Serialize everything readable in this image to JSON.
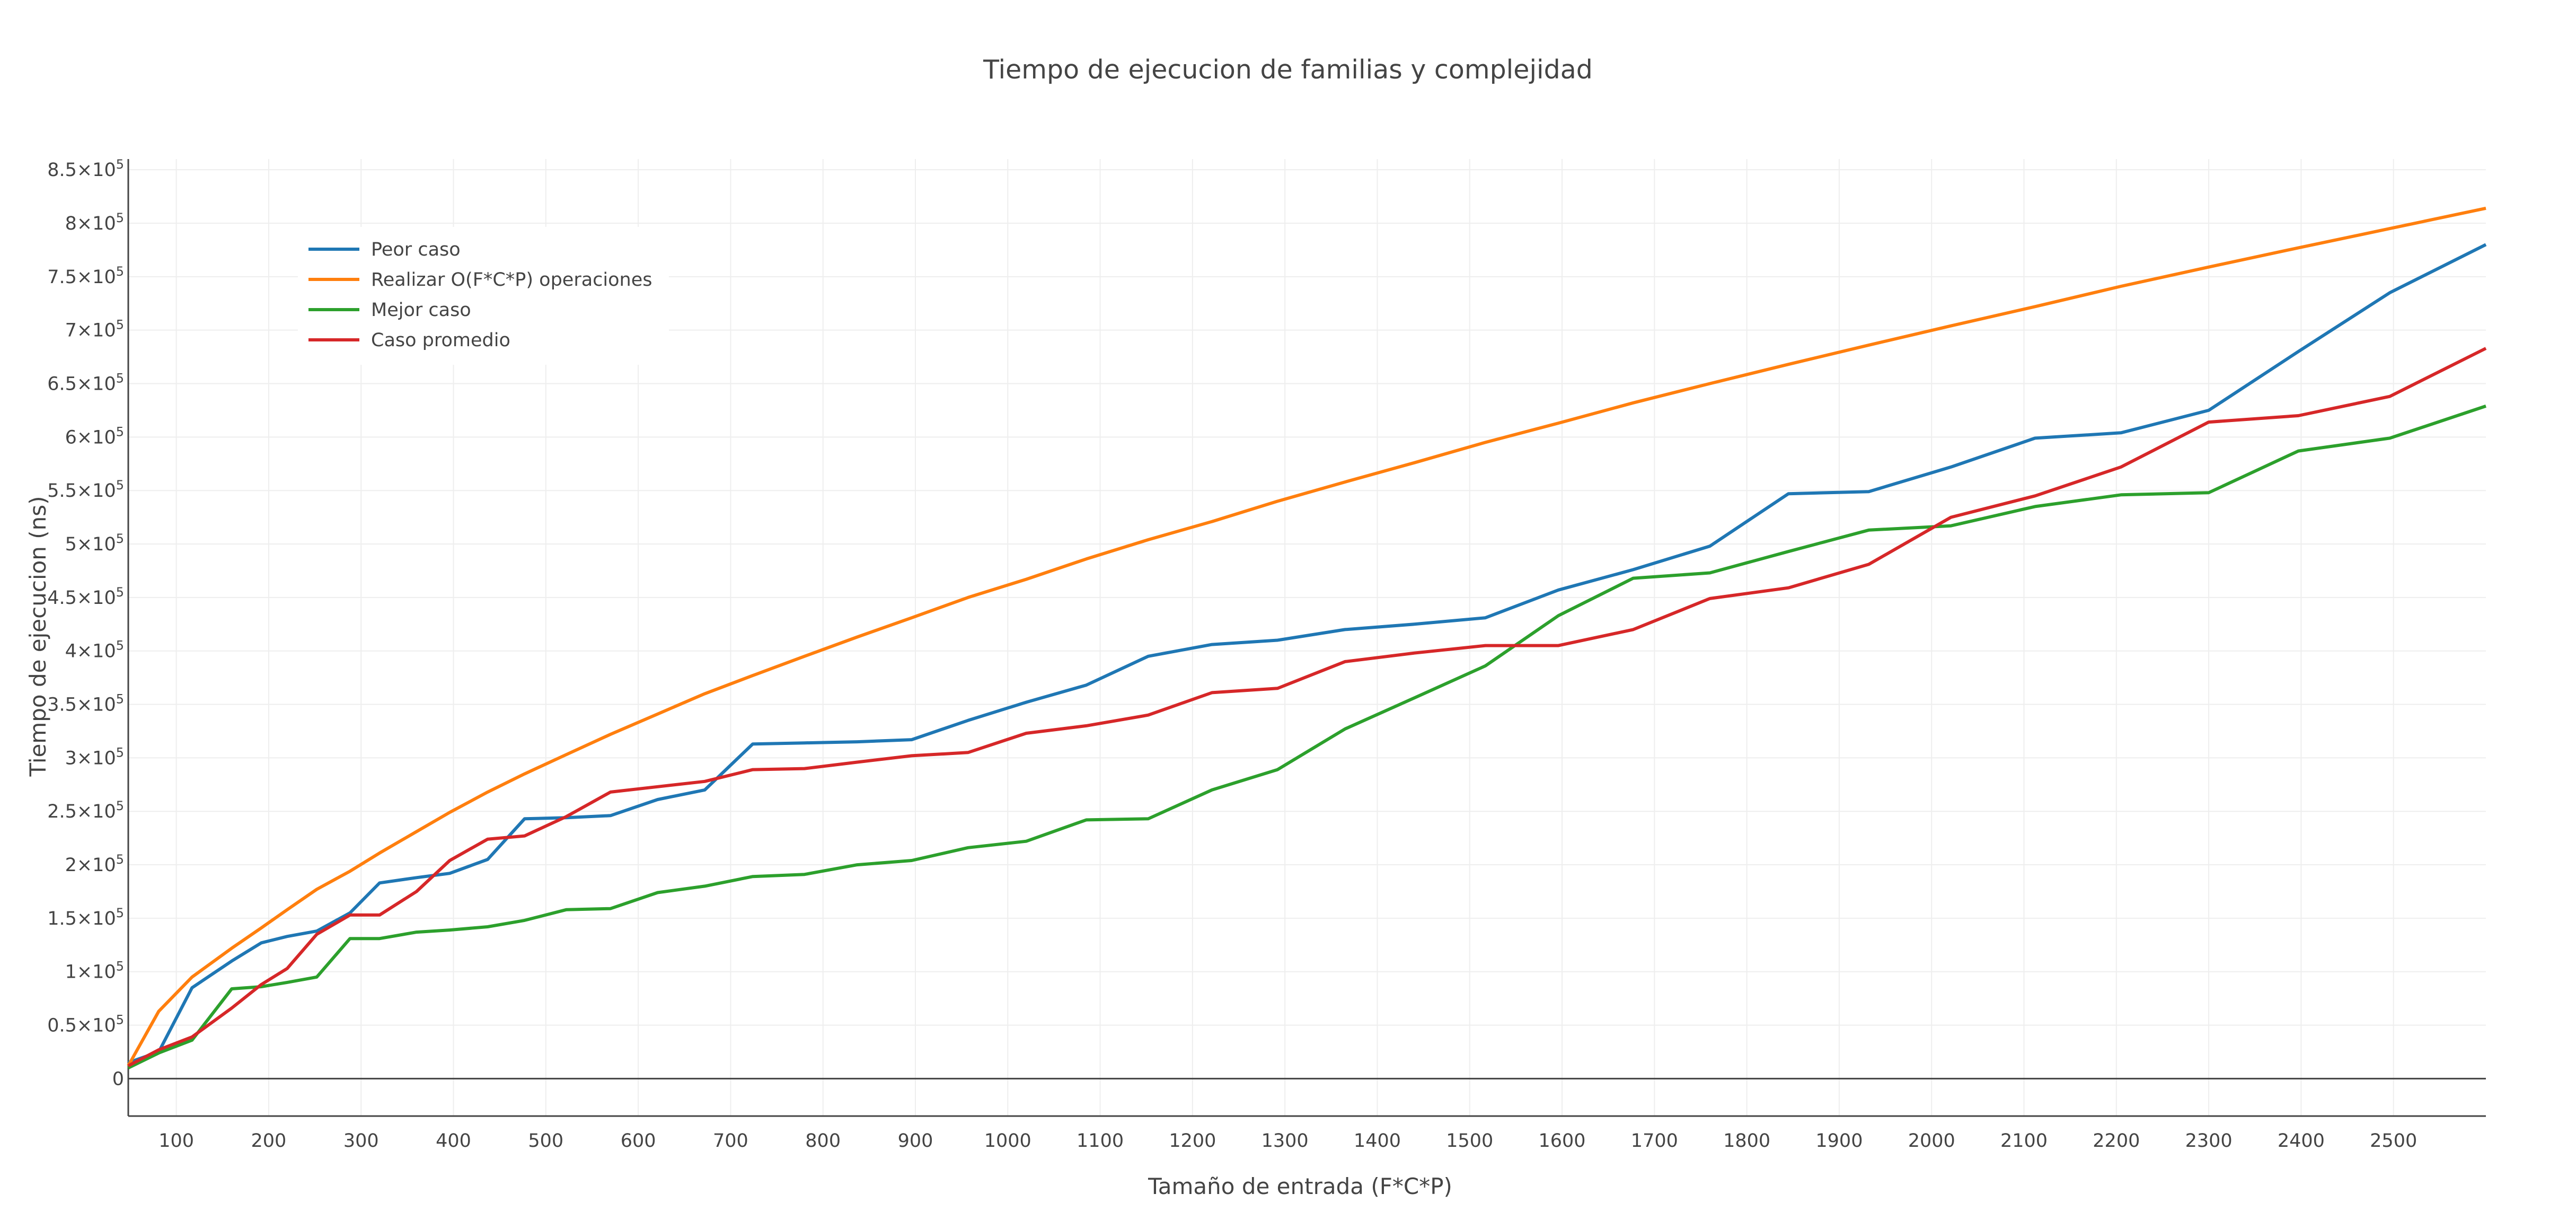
{
  "chart_data": {
    "type": "line",
    "title": "Tiempo de ejecucion de familias y complejidad",
    "xlabel": "Tamaño de entrada (F*C*P)",
    "ylabel": "Tiempo de ejecucion (ns)",
    "xlim": [
      48,
      2600
    ],
    "ylim": [
      -35000,
      860000
    ],
    "grid": true,
    "legend_position": "top-left",
    "x_ticks": [
      100,
      200,
      300,
      400,
      500,
      600,
      700,
      800,
      900,
      1000,
      1100,
      1200,
      1300,
      1400,
      1500,
      1600,
      1700,
      1800,
      1900,
      2000,
      2100,
      2200,
      2300,
      2400,
      2500
    ],
    "y_ticks": [
      {
        "value": 0,
        "mantissa": "0",
        "exponent": ""
      },
      {
        "value": 50000,
        "mantissa": "0.5×10",
        "exponent": "5"
      },
      {
        "value": 100000,
        "mantissa": "1×10",
        "exponent": "5"
      },
      {
        "value": 150000,
        "mantissa": "1.5×10",
        "exponent": "5"
      },
      {
        "value": 200000,
        "mantissa": "2×10",
        "exponent": "5"
      },
      {
        "value": 250000,
        "mantissa": "2.5×10",
        "exponent": "5"
      },
      {
        "value": 300000,
        "mantissa": "3×10",
        "exponent": "5"
      },
      {
        "value": 350000,
        "mantissa": "3.5×10",
        "exponent": "5"
      },
      {
        "value": 400000,
        "mantissa": "4×10",
        "exponent": "5"
      },
      {
        "value": 450000,
        "mantissa": "4.5×10",
        "exponent": "5"
      },
      {
        "value": 500000,
        "mantissa": "5×10",
        "exponent": "5"
      },
      {
        "value": 550000,
        "mantissa": "5.5×10",
        "exponent": "5"
      },
      {
        "value": 600000,
        "mantissa": "6×10",
        "exponent": "5"
      },
      {
        "value": 650000,
        "mantissa": "6.5×10",
        "exponent": "5"
      },
      {
        "value": 700000,
        "mantissa": "7×10",
        "exponent": "5"
      },
      {
        "value": 750000,
        "mantissa": "7.5×10",
        "exponent": "5"
      },
      {
        "value": 800000,
        "mantissa": "8×10",
        "exponent": "5"
      },
      {
        "value": 850000,
        "mantissa": "8.5×10",
        "exponent": "5"
      }
    ],
    "x": [
      48,
      81,
      117,
      160,
      192,
      220,
      252,
      288,
      320,
      360,
      396,
      437,
      477,
      522,
      570,
      621,
      672,
      724,
      780,
      837,
      896,
      957,
      1020,
      1085,
      1152,
      1221,
      1292,
      1365,
      1440,
      1517,
      1596,
      1677,
      1760,
      1845,
      1932,
      2021,
      2112,
      2205,
      2300,
      2397,
      2496,
      2600
    ],
    "series": [
      {
        "name": "Peor caso",
        "color": "#1f77b4",
        "values": [
          15000,
          25000,
          85000,
          110000,
          127000,
          133000,
          138000,
          155000,
          183000,
          188000,
          192000,
          205000,
          243000,
          244000,
          246000,
          261000,
          270000,
          313000,
          314000,
          315000,
          317000,
          335000,
          352000,
          368000,
          395000,
          406000,
          410000,
          420000,
          425000,
          431000,
          457000,
          476000,
          498000,
          547000,
          549000,
          572000,
          599000,
          604000,
          625000,
          680000,
          735000,
          780000
        ]
      },
      {
        "name": "Realizar O(F*C*P) operaciones",
        "color": "#ff7f0e",
        "values": [
          12000,
          63000,
          95000,
          122000,
          141000,
          158000,
          177000,
          194000,
          211000,
          231000,
          249000,
          268000,
          285000,
          303000,
          322000,
          341000,
          360000,
          377000,
          395000,
          413000,
          431000,
          450000,
          467000,
          486000,
          504000,
          521000,
          540000,
          558000,
          576000,
          595000,
          613000,
          632000,
          650000,
          668000,
          686000,
          704000,
          722000,
          741000,
          759000,
          777000,
          795000,
          814000
        ]
      },
      {
        "name": "Mejor caso",
        "color": "#2ca02c",
        "values": [
          10000,
          24000,
          36000,
          84000,
          86000,
          90000,
          95000,
          131000,
          131000,
          137000,
          139000,
          142000,
          148000,
          158000,
          159000,
          174000,
          180000,
          189000,
          191000,
          200000,
          204000,
          216000,
          222000,
          242000,
          243000,
          270000,
          289000,
          327000,
          356000,
          386000,
          433000,
          468000,
          473000,
          493000,
          513000,
          517000,
          535000,
          546000,
          548000,
          587000,
          599000,
          629000
        ]
      },
      {
        "name": "Caso promedio",
        "color": "#d62728",
        "values": [
          12000,
          27000,
          39000,
          66000,
          88000,
          103000,
          135000,
          153000,
          153000,
          175000,
          204000,
          224000,
          227000,
          245000,
          268000,
          273000,
          278000,
          289000,
          290000,
          296000,
          302000,
          305000,
          323000,
          330000,
          340000,
          361000,
          365000,
          390000,
          398000,
          405000,
          405000,
          420000,
          449000,
          459000,
          481000,
          525000,
          545000,
          572000,
          614000,
          620000,
          638000,
          683000
        ]
      }
    ]
  }
}
